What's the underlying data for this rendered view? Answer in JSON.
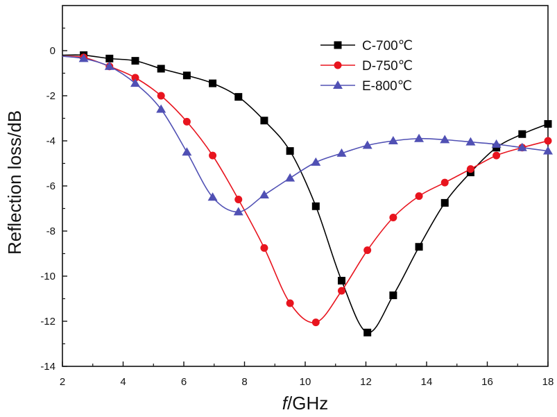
{
  "chart_data": {
    "type": "line",
    "xlabel_italic": "f",
    "xlabel_rest": "/GHz",
    "ylabel": "Reflection loss/dB",
    "xlim": [
      2,
      18
    ],
    "ylim": [
      -14,
      2
    ],
    "xticks": [
      "2",
      "4",
      "6",
      "8",
      "10",
      "12",
      "14",
      "16",
      "18"
    ],
    "yticks": [
      "0",
      "-2",
      "-4",
      "-6",
      "-8",
      "-10",
      "-12",
      "-14"
    ],
    "grid": false,
    "legend_position": "top-right",
    "series": [
      {
        "name": "C-700℃",
        "color": "#000000",
        "marker": "square",
        "x": [
          2.0,
          2.7,
          3.55,
          4.4,
          5.25,
          6.1,
          6.95,
          7.8,
          8.65,
          9.5,
          10.35,
          11.2,
          12.05,
          12.9,
          13.75,
          14.6,
          15.45,
          16.3,
          17.15,
          18.0
        ],
        "y": [
          -0.2,
          -0.2,
          -0.35,
          -0.45,
          -0.8,
          -1.1,
          -1.45,
          -2.05,
          -3.1,
          -4.45,
          -6.9,
          -10.2,
          -12.5,
          -10.85,
          -8.7,
          -6.75,
          -5.4,
          -4.3,
          -3.7,
          -3.25
        ]
      },
      {
        "name": "D-750℃",
        "color": "#e8141e",
        "marker": "circle",
        "x": [
          2.0,
          2.7,
          3.55,
          4.4,
          5.25,
          6.1,
          6.95,
          7.8,
          8.65,
          9.5,
          10.35,
          11.2,
          12.05,
          12.9,
          13.75,
          14.6,
          15.45,
          16.3,
          17.15,
          18.0
        ],
        "y": [
          -0.25,
          -0.3,
          -0.7,
          -1.2,
          -2.0,
          -3.15,
          -4.65,
          -6.6,
          -8.75,
          -11.2,
          -12.05,
          -10.65,
          -8.85,
          -7.4,
          -6.45,
          -5.85,
          -5.25,
          -4.65,
          -4.3,
          -4.0
        ]
      },
      {
        "name": "E-800℃",
        "color": "#5050b4",
        "marker": "triangle",
        "x": [
          2.0,
          2.7,
          3.55,
          4.4,
          5.25,
          6.1,
          6.95,
          7.8,
          8.65,
          9.5,
          10.35,
          11.2,
          12.05,
          12.9,
          13.75,
          14.6,
          15.45,
          16.3,
          17.15,
          18.0
        ],
        "y": [
          -0.25,
          -0.35,
          -0.7,
          -1.45,
          -2.6,
          -4.5,
          -6.5,
          -7.15,
          -6.4,
          -5.65,
          -4.95,
          -4.55,
          -4.2,
          -4.0,
          -3.9,
          -3.95,
          -4.05,
          -4.15,
          -4.3,
          -4.45
        ]
      }
    ]
  }
}
